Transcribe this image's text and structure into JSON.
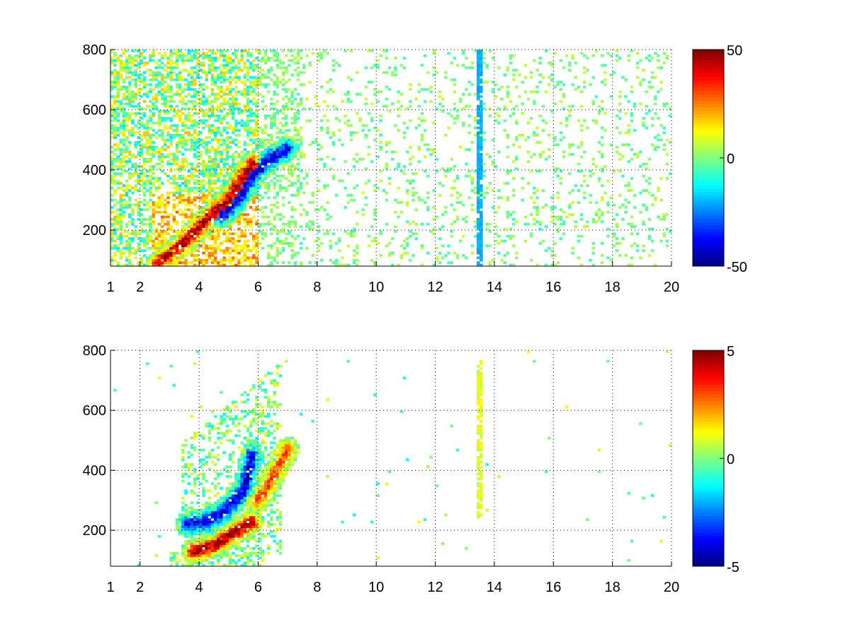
{
  "chart_data": [
    {
      "type": "heatmap",
      "title": "",
      "xlabel": "",
      "ylabel": "",
      "xlim": [
        1,
        20
      ],
      "ylim": [
        80,
        800
      ],
      "xticks": [
        1,
        2,
        4,
        6,
        8,
        10,
        12,
        14,
        16,
        18,
        20
      ],
      "xtick_labels": [
        "1",
        "2",
        "4",
        "6",
        "8",
        "10",
        "12",
        "14",
        "16",
        "18",
        "20"
      ],
      "yticks": [
        200,
        400,
        600,
        800
      ],
      "ytick_labels": [
        "200",
        "400",
        "600",
        "800"
      ],
      "grid": true,
      "colormap": "jet",
      "colorbar": {
        "min": -50,
        "max": 50,
        "ticks": [
          -50,
          0,
          50
        ],
        "tick_labels": [
          "-50",
          "0",
          "50"
        ]
      },
      "features": [
        {
          "desc": "positive ridge",
          "path": [
            [
              2.6,
              90
            ],
            [
              3.5,
              160
            ],
            [
              4.0,
              210
            ],
            [
              4.5,
              260
            ],
            [
              5.0,
              300
            ],
            [
              5.5,
              380
            ],
            [
              5.8,
              420
            ]
          ],
          "value": 45
        },
        {
          "desc": "negative band",
          "path": [
            [
              4.8,
              250
            ],
            [
              5.3,
              300
            ],
            [
              5.8,
              380
            ],
            [
              6.3,
              430
            ],
            [
              7.0,
              470
            ]
          ],
          "value": -40
        },
        {
          "desc": "stripe",
          "x": 13.5,
          "y_range": [
            80,
            800
          ],
          "value": -20
        }
      ]
    },
    {
      "type": "heatmap",
      "title": "",
      "xlabel": "",
      "ylabel": "",
      "xlim": [
        1,
        20
      ],
      "ylim": [
        80,
        800
      ],
      "xticks": [
        1,
        2,
        4,
        6,
        8,
        10,
        12,
        14,
        16,
        18,
        20
      ],
      "xtick_labels": [
        "1",
        "2",
        "4",
        "6",
        "8",
        "10",
        "12",
        "14",
        "16",
        "18",
        "20"
      ],
      "yticks": [
        200,
        400,
        600,
        800
      ],
      "ytick_labels": [
        "200",
        "400",
        "600",
        "800"
      ],
      "grid": true,
      "colormap": "jet",
      "colorbar": {
        "min": -5,
        "max": 5,
        "ticks": [
          -5,
          0,
          5
        ],
        "tick_labels": [
          "-5",
          "0",
          "5"
        ]
      },
      "features": [
        {
          "desc": "positive arc",
          "path": [
            [
              3.8,
              130
            ],
            [
              4.5,
              150
            ],
            [
              5.0,
              180
            ],
            [
              5.8,
              230
            ]
          ],
          "value": 4.5
        },
        {
          "desc": "negative arc",
          "path": [
            [
              3.6,
              220
            ],
            [
              4.2,
              230
            ],
            [
              4.8,
              260
            ],
            [
              5.5,
              330
            ],
            [
              5.8,
              450
            ]
          ],
          "value": -4
        },
        {
          "desc": "positive band",
          "path": [
            [
              6.0,
              300
            ],
            [
              6.5,
              380
            ],
            [
              7.0,
              470
            ]
          ],
          "value": 3
        },
        {
          "desc": "stripe",
          "x": 13.5,
          "y_range": [
            240,
            770
          ],
          "value": 1
        }
      ]
    }
  ]
}
